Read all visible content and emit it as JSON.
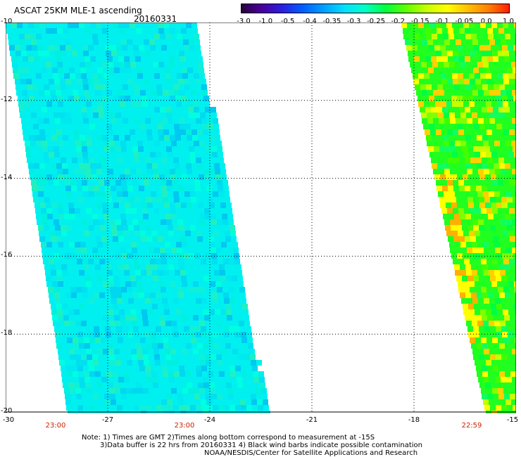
{
  "header": {
    "title": "ASCAT 25KM MLE-1 ascending",
    "date": "20160331"
  },
  "colorbar": {
    "colors": [
      "#2a0040",
      "#4a00a0",
      "#2a20e0",
      "#0060ff",
      "#00a0ff",
      "#00e0ff",
      "#00ffc8",
      "#00ff40",
      "#60ff00",
      "#c8ff00",
      "#ffff00",
      "#ffc000",
      "#ff8000",
      "#ff2000"
    ],
    "ticks": [
      "-3.0",
      "-1.0",
      "-0.5",
      "-0.4",
      "-0.35",
      "-0.3",
      "-0.25",
      "-0.2",
      "-0.15",
      "-0.1",
      "-0.05",
      "0.0",
      "1.0"
    ]
  },
  "axes": {
    "lat_labels": [
      "-10",
      "-12",
      "-14",
      "-16",
      "-18",
      "-20"
    ],
    "lon_labels": [
      "-30",
      "-27",
      "-24",
      "-21",
      "-18",
      "-15"
    ]
  },
  "pass_times": [
    "23:00",
    "23:00",
    "22:59"
  ],
  "notes": {
    "line1": "Note: 1) Times are GMT 2)Times along bottom correspond to measurement at -15S",
    "line2": "3)Data buffer is 22 hrs from 20160331 4) Black wind barbs indicate possible contamination",
    "line3": "NOAA/NESDIS/Center for Satellite Applications and Research"
  },
  "swath_colors": {
    "left_base": "#00f0f0",
    "left_variants": [
      "#00e8f0",
      "#00f0e0",
      "#00e0f0",
      "#10f0d8",
      "#20f0c0",
      "#00d8f0",
      "#00ffe0",
      "#00c8f0"
    ],
    "right_base": "#20ff20",
    "right_variants": [
      "#40ff00",
      "#00ff40",
      "#80ff00",
      "#10ff60",
      "#c8ff00",
      "#ffff00",
      "#ffd000"
    ]
  }
}
